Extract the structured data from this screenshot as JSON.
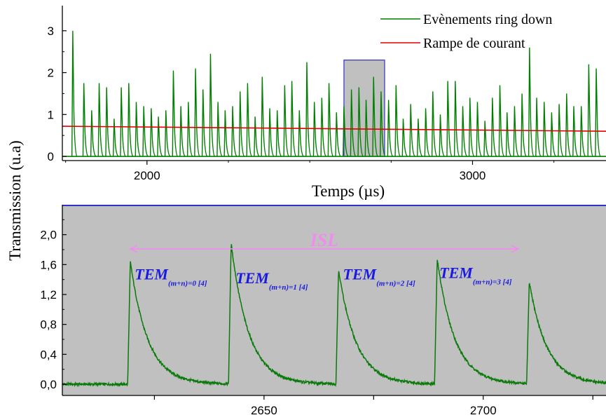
{
  "chart_data": [
    {
      "type": "line",
      "panel": "top",
      "xlabel": "Temps (µs)",
      "ylabel": "Transmission (u.a)",
      "xlim": [
        1740,
        3410
      ],
      "ylim": [
        -0.1,
        3.6
      ],
      "xticks": [
        2000,
        3000
      ],
      "xtick_labels": [
        "2000",
        "3000"
      ],
      "yticks": [
        0,
        1,
        2,
        3
      ],
      "ytick_labels": [
        "0",
        "1",
        "2",
        "3"
      ],
      "legend_position": "top-right",
      "series": [
        {
          "name": "Evènements ring down",
          "color": "#008000",
          "kind": "ring-down peaks",
          "peak_x": [
            1772,
            1806,
            1830,
            1853,
            1876,
            1899,
            1921,
            1944,
            1967,
            1990,
            2013,
            2035,
            2058,
            2081,
            2104,
            2127,
            2149,
            2172,
            2195,
            2218,
            2240,
            2263,
            2286,
            2309,
            2332,
            2354,
            2377,
            2400,
            2423,
            2445,
            2468,
            2491,
            2514,
            2537,
            2559,
            2582,
            2605,
            2628,
            2651,
            2673,
            2696,
            2719,
            2742,
            2765,
            2787,
            2810,
            2833,
            2856,
            2878,
            2901,
            2924,
            2947,
            2970,
            2992,
            3015,
            3038,
            3061,
            3084,
            3106,
            3129,
            3152,
            3175,
            3197,
            3220,
            3243,
            3266,
            3289,
            3311,
            3334,
            3357,
            3380
          ],
          "peak_y": [
            3.0,
            1.75,
            1.1,
            1.75,
            1.65,
            0.9,
            1.65,
            1.75,
            1.3,
            1.2,
            1.15,
            0.95,
            1.1,
            2.05,
            1.2,
            1.3,
            2.1,
            1.6,
            2.45,
            1.3,
            1.1,
            1.2,
            1.55,
            1.75,
            0.95,
            1.9,
            1.15,
            1.1,
            1.7,
            1.8,
            1.1,
            2.25,
            1.3,
            1.4,
            1.75,
            1.05,
            1.2,
            1.6,
            1.65,
            1.35,
            1.9,
            1.55,
            1.35,
            1.7,
            0.9,
            1.25,
            0.9,
            1.15,
            1.55,
            1.0,
            1.8,
            1.8,
            1.2,
            1.4,
            1.3,
            0.85,
            1.4,
            1.7,
            1.05,
            1.2,
            1.5,
            2.6,
            1.4,
            1.3,
            1.05,
            1.25,
            1.5,
            1.2,
            1.2,
            2.2,
            2.1
          ]
        },
        {
          "name": "Rampe de courant",
          "color": "#e00000",
          "x": [
            1740,
            3410
          ],
          "y": [
            0.72,
            0.6
          ]
        }
      ],
      "highlight_range_x": [
        2605,
        2730
      ]
    },
    {
      "type": "line",
      "panel": "bottom",
      "xlabel": "",
      "ylabel": "",
      "xlim": [
        2604,
        2728
      ],
      "ylim": [
        -0.15,
        2.4
      ],
      "xticks": [
        2650,
        2700
      ],
      "xtick_labels": [
        "2650",
        "2700"
      ],
      "yticks": [
        0.0,
        0.4,
        0.8,
        1.2,
        1.6,
        2.0
      ],
      "ytick_labels": [
        "0,0",
        "0,4",
        "0,8",
        "1,2",
        "1,6",
        "2,0"
      ],
      "series": [
        {
          "color": "#008000",
          "kind": "ring-down peaks",
          "peak_x": [
            2619.5,
            2642.5,
            2667.0,
            2689.5,
            2710.5
          ],
          "peak_y": [
            1.64,
            1.88,
            1.53,
            1.67,
            1.36
          ]
        }
      ],
      "annotations": [
        {
          "text_main": "TEM",
          "text_sub": "(m+n)=0 [4]",
          "x": 2620.5,
          "y": 1.4
        },
        {
          "text_main": "TEM",
          "text_sub": "(m+n)=1 [4]",
          "x": 2643.5,
          "y": 1.35
        },
        {
          "text_main": "TEM",
          "text_sub": "(m+n)=2 [4]",
          "x": 2668.0,
          "y": 1.4
        },
        {
          "text_main": "TEM",
          "text_sub": "(m+n)=3 [4]",
          "x": 2690.0,
          "y": 1.42
        }
      ],
      "isl": {
        "label": "ISL",
        "x_start": 2619.5,
        "x_end": 2708.0,
        "y": 1.81
      }
    }
  ]
}
